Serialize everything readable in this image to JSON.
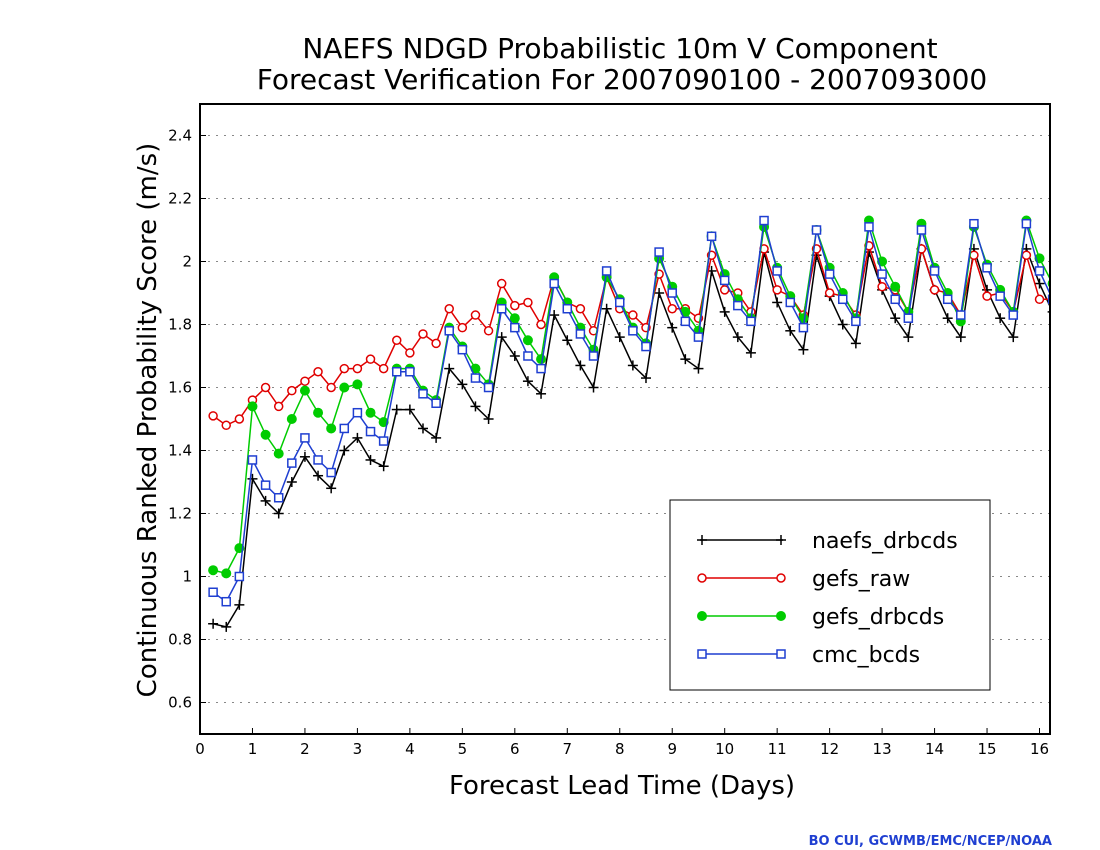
{
  "chart_data": {
    "type": "line",
    "title_line1": "NAEFS NDGD Probabilistic 10m V Component",
    "title_line2": "Forecast Verification For 2007090100 - 2007093000",
    "xlabel": "Forecast Lead Time (Days)",
    "ylabel": "Continuous Ranked Probability Score (m/s)",
    "credit": "BO CUI, GCWMB/EMC/NCEP/NOAA",
    "xlim": [
      0,
      16.2
    ],
    "ylim": [
      0.5,
      2.5
    ],
    "x_ticks": [
      0,
      1,
      2,
      3,
      4,
      5,
      6,
      7,
      8,
      9,
      10,
      11,
      12,
      13,
      14,
      15,
      16
    ],
    "x_tick_labels": [
      "0",
      "1",
      "2",
      "3",
      "4",
      "5",
      "6",
      "7",
      "8",
      "9",
      "10",
      "11",
      "12",
      "13",
      "14",
      "15",
      "16"
    ],
    "y_ticks": [
      0.6,
      0.8,
      1,
      1.2,
      1.4,
      1.6,
      1.8,
      2,
      2.2,
      2.4
    ],
    "y_tick_labels": [
      "0.6",
      "0.8",
      "1",
      "1.2",
      "1.4",
      "1.6",
      "1.8",
      "2",
      "2.2",
      "2.4"
    ],
    "grid": true,
    "legend_position": "lower-right",
    "x": [
      0.25,
      0.5,
      0.75,
      1,
      1.25,
      1.5,
      1.75,
      2,
      2.25,
      2.5,
      2.75,
      3,
      3.25,
      3.5,
      3.75,
      4,
      4.25,
      4.5,
      4.75,
      5,
      5.25,
      5.5,
      5.75,
      6,
      6.25,
      6.5,
      6.75,
      7,
      7.25,
      7.5,
      7.75,
      8,
      8.25,
      8.5,
      8.75,
      9,
      9.25,
      9.5,
      9.75,
      10,
      10.25,
      10.5,
      10.75,
      11,
      11.25,
      11.5,
      11.75,
      12,
      12.25,
      12.5,
      12.75,
      13,
      13.25,
      13.5,
      13.75,
      14,
      14.25,
      14.5,
      14.75,
      15,
      15.25,
      15.5,
      15.75,
      16,
      16.25
    ],
    "series": [
      {
        "name": "naefs_drbcds",
        "color": "#000000",
        "marker": "plus",
        "values": [
          0.85,
          0.84,
          0.91,
          1.31,
          1.24,
          1.2,
          1.3,
          1.38,
          1.32,
          1.28,
          1.4,
          1.44,
          1.37,
          1.35,
          1.53,
          1.53,
          1.47,
          1.44,
          1.66,
          1.61,
          1.54,
          1.5,
          1.76,
          1.7,
          1.62,
          1.58,
          1.83,
          1.75,
          1.67,
          1.6,
          1.85,
          1.76,
          1.67,
          1.63,
          1.9,
          1.79,
          1.69,
          1.66,
          1.97,
          1.84,
          1.76,
          1.71,
          2.03,
          1.87,
          1.78,
          1.72,
          2.02,
          1.89,
          1.8,
          1.74,
          2.03,
          1.91,
          1.82,
          1.76,
          2.04,
          1.91,
          1.82,
          1.76,
          2.04,
          1.91,
          1.82,
          1.76,
          2.04,
          1.93,
          1.84
        ]
      },
      {
        "name": "gefs_raw",
        "color": "#e00000",
        "marker": "circle-open",
        "values": [
          1.51,
          1.48,
          1.5,
          1.56,
          1.6,
          1.54,
          1.59,
          1.62,
          1.65,
          1.6,
          1.66,
          1.66,
          1.69,
          1.66,
          1.75,
          1.71,
          1.77,
          1.74,
          1.85,
          1.79,
          1.83,
          1.78,
          1.93,
          1.86,
          1.87,
          1.8,
          1.95,
          1.87,
          1.85,
          1.78,
          1.95,
          1.85,
          1.83,
          1.79,
          1.96,
          1.85,
          1.85,
          1.82,
          2.02,
          1.91,
          1.9,
          1.84,
          2.04,
          1.91,
          1.89,
          1.83,
          2.04,
          1.9,
          1.89,
          1.83,
          2.05,
          1.92,
          1.91,
          1.84,
          2.04,
          1.91,
          1.9,
          1.83,
          2.02,
          1.89,
          1.9,
          1.84,
          2.02,
          1.88,
          1.88
        ]
      },
      {
        "name": "gefs_drbcds",
        "color": "#00cc00",
        "marker": "circle-filled",
        "values": [
          1.02,
          1.01,
          1.09,
          1.54,
          1.45,
          1.39,
          1.5,
          1.59,
          1.52,
          1.47,
          1.6,
          1.61,
          1.52,
          1.49,
          1.66,
          1.66,
          1.59,
          1.56,
          1.79,
          1.73,
          1.66,
          1.61,
          1.87,
          1.82,
          1.75,
          1.69,
          1.95,
          1.87,
          1.79,
          1.72,
          1.95,
          1.88,
          1.79,
          1.74,
          2.01,
          1.92,
          1.84,
          1.78,
          2.08,
          1.96,
          1.88,
          1.82,
          2.11,
          1.98,
          1.89,
          1.82,
          2.1,
          1.98,
          1.9,
          1.82,
          2.13,
          2.0,
          1.92,
          1.84,
          2.12,
          1.98,
          1.9,
          1.81,
          2.11,
          1.99,
          1.91,
          1.84,
          2.13,
          2.01,
          1.93
        ]
      },
      {
        "name": "cmc_bcds",
        "color": "#1f3fd1",
        "marker": "square-open",
        "values": [
          0.95,
          0.92,
          1.0,
          1.37,
          1.29,
          1.25,
          1.36,
          1.44,
          1.37,
          1.33,
          1.47,
          1.52,
          1.46,
          1.43,
          1.65,
          1.65,
          1.58,
          1.55,
          1.78,
          1.72,
          1.63,
          1.6,
          1.85,
          1.79,
          1.7,
          1.66,
          1.93,
          1.85,
          1.77,
          1.7,
          1.97,
          1.87,
          1.78,
          1.73,
          2.03,
          1.9,
          1.81,
          1.76,
          2.08,
          1.94,
          1.86,
          1.81,
          2.13,
          1.97,
          1.87,
          1.79,
          2.1,
          1.96,
          1.88,
          1.81,
          2.11,
          1.96,
          1.88,
          1.82,
          2.1,
          1.97,
          1.88,
          1.83,
          2.12,
          1.98,
          1.89,
          1.83,
          2.12,
          1.97,
          1.88
        ]
      }
    ]
  }
}
